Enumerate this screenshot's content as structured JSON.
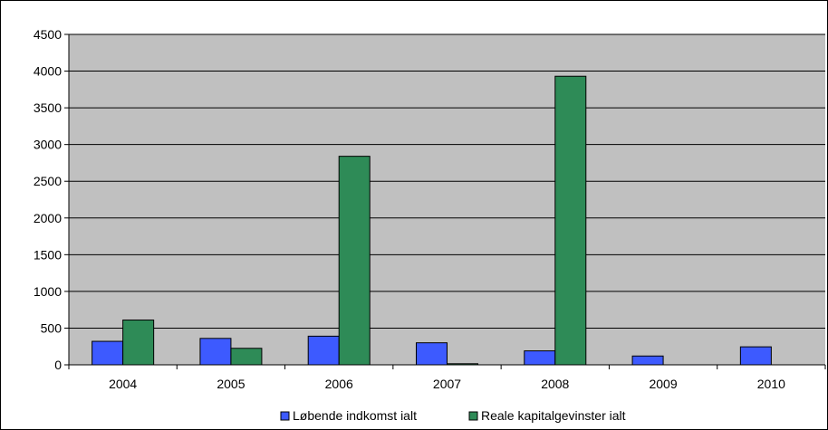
{
  "chart_data": {
    "type": "bar",
    "title": "",
    "xlabel": "",
    "ylabel": "",
    "categories": [
      "2004",
      "2005",
      "2006",
      "2007",
      "2008",
      "2009",
      "2010"
    ],
    "ylim": [
      0,
      4500
    ],
    "yticks": [
      0,
      500,
      1000,
      1500,
      2000,
      2500,
      3000,
      3500,
      4000,
      4500
    ],
    "grid": true,
    "legend_position": "bottom",
    "series": [
      {
        "name": "Løbende indkomst ialt",
        "color": "#3d5aff",
        "values": [
          320,
          360,
          390,
          300,
          190,
          120,
          245
        ]
      },
      {
        "name": "Reale kapitalgevinster ialt",
        "color": "#2e8b57",
        "values": [
          610,
          225,
          2840,
          15,
          3930,
          0,
          0
        ]
      }
    ],
    "plot_background": "#c0c0c0"
  }
}
